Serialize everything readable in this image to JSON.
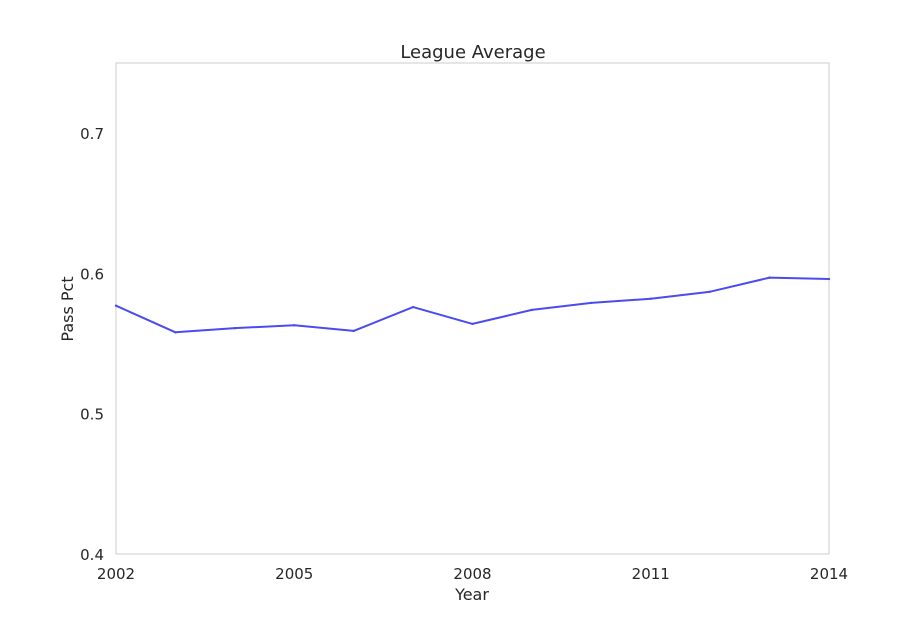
{
  "chart_data": {
    "type": "line",
    "title": "League Average",
    "xlabel": "Year",
    "ylabel": "Pass Pct",
    "xlim": [
      2002,
      2014
    ],
    "ylim": [
      0.4,
      0.75
    ],
    "xticks": [
      2002,
      2005,
      2008,
      2011,
      2014
    ],
    "xtick_labels": [
      "2002",
      "2005",
      "2008",
      "2011",
      "2014"
    ],
    "yticks": [
      0.4,
      0.5,
      0.6,
      0.7
    ],
    "ytick_labels": [
      "0.4",
      "0.5",
      "0.6",
      "0.7"
    ],
    "grid": false,
    "x": [
      2002,
      2003,
      2004,
      2005,
      2006,
      2007,
      2008,
      2009,
      2010,
      2011,
      2012,
      2013,
      2014
    ],
    "series": [
      {
        "color": "#4b4bf0",
        "values": [
          0.577,
          0.558,
          0.561,
          0.563,
          0.559,
          0.576,
          0.564,
          0.574,
          0.579,
          0.582,
          0.587,
          0.597,
          0.596
        ]
      }
    ]
  }
}
